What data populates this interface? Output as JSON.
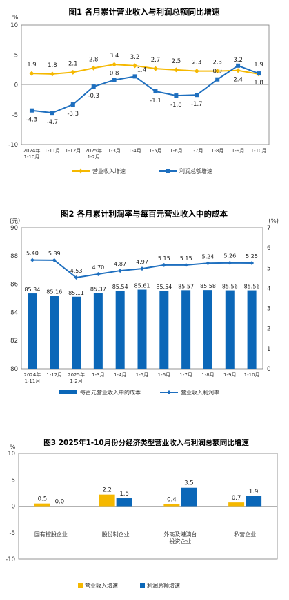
{
  "chart_data": [
    {
      "type": "line",
      "title": "图1  各月累计营业收入与利润总额同比增速",
      "yunit": "%",
      "ylim": [
        -10,
        10
      ],
      "yticks": [
        "10",
        "5",
        "0",
        "-5",
        "-10"
      ],
      "categories": [
        "2024年\n1-10月",
        "1-11月",
        "1-12月",
        "2025年\n1-2月",
        "1-3月",
        "1-4月",
        "1-5月",
        "1-6月",
        "1-7月",
        "1-8月",
        "1-9月",
        "1-10月"
      ],
      "series": [
        {
          "name": "营业收入增速",
          "color": "#f5b800",
          "marker": "diamond",
          "values": [
            1.9,
            1.8,
            2.1,
            2.8,
            3.4,
            3.2,
            2.7,
            2.5,
            2.3,
            2.3,
            2.4,
            1.8
          ],
          "labels": [
            "1.9",
            "1.8",
            "2.1",
            "2.8",
            "3.4",
            "3.2",
            "2.7",
            "2.5",
            "2.3",
            "2.3",
            "2.4",
            "1.8"
          ]
        },
        {
          "name": "利润总额增速",
          "color": "#1e6fbf",
          "marker": "square",
          "values": [
            -4.3,
            -4.7,
            -3.3,
            -0.3,
            0.8,
            1.4,
            -1.1,
            -1.8,
            -1.7,
            0.9,
            3.2,
            1.9
          ],
          "labels": [
            "-4.3",
            "-4.7",
            "-3.3",
            "-0.3",
            "0.8",
            "1.4",
            "-1.1",
            "-1.8",
            "-1.7",
            "0.9",
            "3.2",
            "1.9"
          ]
        }
      ],
      "legend_position": "bottom",
      "grid": false
    },
    {
      "type": "bar",
      "title": "图2  各月累计利润率与每百元营业收入中的成本",
      "left_unit": "(元)",
      "right_unit": "(%)",
      "ylim_left": [
        80,
        90
      ],
      "ylim_right": [
        0,
        7
      ],
      "yticks_left": [
        "90",
        "88",
        "86",
        "84",
        "82",
        "80"
      ],
      "yticks_right": [
        "7",
        "6",
        "5",
        "4",
        "3",
        "2",
        "1",
        "0"
      ],
      "categories": [
        "2024年\n1-11月",
        "1-12月",
        "2025年\n1-2月",
        "1-3月",
        "1-4月",
        "1-5月",
        "1-6月",
        "1-7月",
        "1-8月",
        "1-9月",
        "1-10月"
      ],
      "series": [
        {
          "name": "每百元营业收入中的成本",
          "kind": "bar",
          "axis": "left",
          "color": "#0b67b8",
          "values": [
            85.34,
            85.16,
            85.11,
            85.37,
            85.54,
            85.61,
            85.54,
            85.57,
            85.58,
            85.56,
            85.56
          ],
          "labels": [
            "85.34",
            "85.16",
            "85.11",
            "85.37",
            "85.54",
            "85.61",
            "85.54",
            "85.57",
            "85.58",
            "85.56",
            "85.56"
          ]
        },
        {
          "name": "营业收入利润率",
          "kind": "line",
          "axis": "right",
          "color": "#1e6fbf",
          "values": [
            5.4,
            5.39,
            4.53,
            4.7,
            4.87,
            4.97,
            5.15,
            5.15,
            5.24,
            5.26,
            5.25
          ],
          "labels": [
            "5.40",
            "5.39",
            "4.53",
            "4.70",
            "4.87",
            "4.97",
            "5.15",
            "5.15",
            "5.24",
            "5.26",
            "5.25"
          ]
        }
      ],
      "legend_position": "bottom",
      "grid": false
    },
    {
      "type": "bar",
      "title": "图3  2025年1-10月份分经济类型营业收入与利润总额同比增速",
      "yunit": "%",
      "ylim": [
        -10,
        10
      ],
      "yticks": [
        "10",
        "5",
        "0",
        "-5",
        "-10"
      ],
      "categories": [
        "国有控股企业",
        "股份制企业",
        "外商及港澳台\n投资企业",
        "私营企业"
      ],
      "series": [
        {
          "name": "营业收入增速",
          "color": "#f5b800",
          "values": [
            0.5,
            2.2,
            0.4,
            0.7
          ],
          "labels": [
            "0.5",
            "2.2",
            "0.4",
            "0.7"
          ]
        },
        {
          "name": "利润总额增速",
          "color": "#0b67b8",
          "values": [
            0.0,
            1.5,
            3.5,
            1.9
          ],
          "labels": [
            "0.0",
            "1.5",
            "3.5",
            "1.9"
          ]
        }
      ],
      "legend_position": "bottom",
      "grid": false
    }
  ]
}
